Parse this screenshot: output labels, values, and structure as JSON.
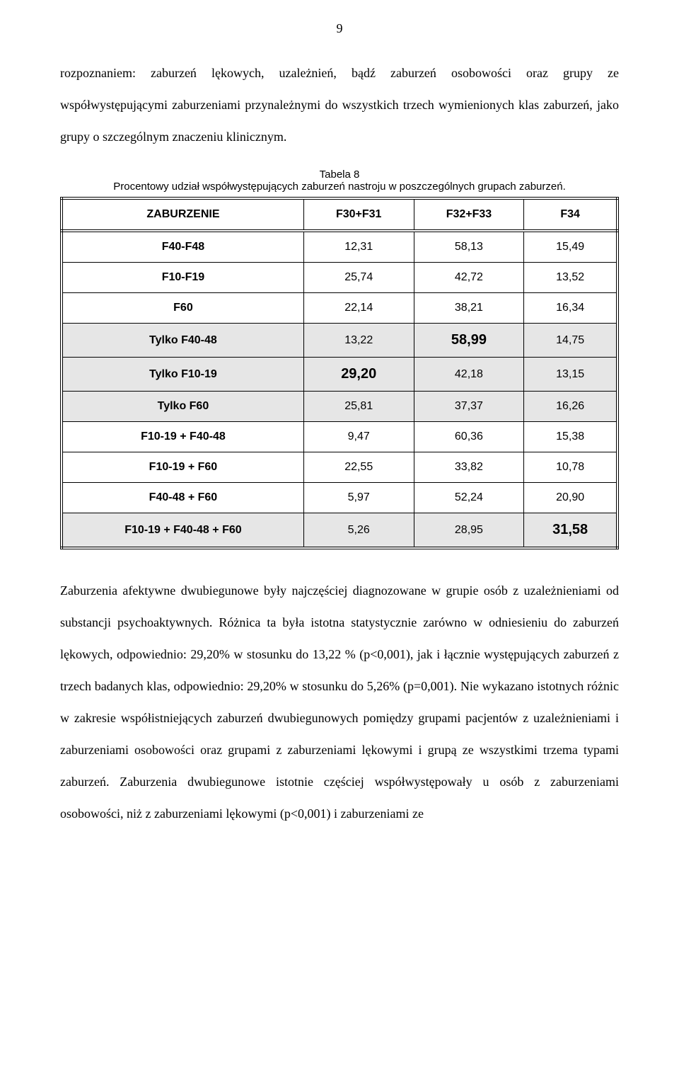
{
  "page_number": "9",
  "para1": "rozpoznaniem: zaburzeń lękowych, uzależnień, bądź zaburzeń osobowości oraz grupy ze współwystępującymi zaburzeniami przynależnymi do wszystkich trzech wymienionych klas zaburzeń, jako grupy o szczególnym znaczeniu klinicznym.",
  "table": {
    "caption_line1": "Tabela 8",
    "caption_line2": "Procentowy udział współwystępujących zaburzeń nastroju w poszczególnych grupach zaburzeń.",
    "columns": [
      "ZABURZENIE",
      "F30+F31",
      "F32+F33",
      "F34"
    ],
    "rows": [
      {
        "label": "F40-F48",
        "vals": [
          "12,31",
          "58,13",
          "15,49"
        ],
        "shaded": [
          false,
          false,
          false
        ],
        "big": [
          false,
          false,
          false
        ]
      },
      {
        "label": "F10-F19",
        "vals": [
          "25,74",
          "42,72",
          "13,52"
        ],
        "shaded": [
          false,
          false,
          false
        ],
        "big": [
          false,
          false,
          false
        ]
      },
      {
        "label": "F60",
        "vals": [
          "22,14",
          "38,21",
          "16,34"
        ],
        "shaded": [
          false,
          false,
          false
        ],
        "big": [
          false,
          false,
          false
        ]
      },
      {
        "label": "Tylko F40-48",
        "vals": [
          "13,22",
          "58,99",
          "14,75"
        ],
        "shaded": [
          true,
          true,
          true
        ],
        "big": [
          false,
          true,
          false
        ],
        "label_shaded": true
      },
      {
        "label": "Tylko F10-19",
        "vals": [
          "29,20",
          "42,18",
          "13,15"
        ],
        "shaded": [
          true,
          true,
          true
        ],
        "big": [
          true,
          false,
          false
        ],
        "label_shaded": true
      },
      {
        "label": "Tylko F60",
        "vals": [
          "25,81",
          "37,37",
          "16,26"
        ],
        "shaded": [
          true,
          true,
          true
        ],
        "big": [
          false,
          false,
          false
        ],
        "label_shaded": true
      },
      {
        "label": "F10-19 + F40-48",
        "vals": [
          "9,47",
          "60,36",
          "15,38"
        ],
        "shaded": [
          false,
          false,
          false
        ],
        "big": [
          false,
          false,
          false
        ]
      },
      {
        "label": "F10-19 + F60",
        "vals": [
          "22,55",
          "33,82",
          "10,78"
        ],
        "shaded": [
          false,
          false,
          false
        ],
        "big": [
          false,
          false,
          false
        ]
      },
      {
        "label": "F40-48 + F60",
        "vals": [
          "5,97",
          "52,24",
          "20,90"
        ],
        "shaded": [
          false,
          false,
          false
        ],
        "big": [
          false,
          false,
          false
        ]
      },
      {
        "label": "F10-19 + F40-48 + F60",
        "vals": [
          "5,26",
          "28,95",
          "31,58"
        ],
        "shaded": [
          true,
          true,
          true
        ],
        "big": [
          false,
          false,
          true
        ],
        "label_shaded": true
      }
    ]
  },
  "para2": "Zaburzenia afektywne dwubiegunowe były najczęściej diagnozowane w grupie osób z uzależnieniami od substancji psychoaktywnych. Różnica ta była istotna statystycznie zarówno w odniesieniu do zaburzeń lękowych, odpowiednio: 29,20% w stosunku do 13,22 % (p<0,001), jak i łącznie występujących zaburzeń z trzech badanych klas, odpowiednio: 29,20% w stosunku do 5,26% (p=0,001). Nie wykazano istotnych różnic w zakresie współistniejących zaburzeń dwubiegunowych pomiędzy grupami pacjentów z uzależnieniami i zaburzeniami osobowości  oraz grupami z zaburzeniami lękowymi i grupą ze wszystkimi trzema typami zaburzeń. Zaburzenia dwubiegunowe istotnie częściej współwystępowały u osób z zaburzeniami osobowości, niż z zaburzeniami lękowymi (p<0,001) i zaburzeniami ze"
}
